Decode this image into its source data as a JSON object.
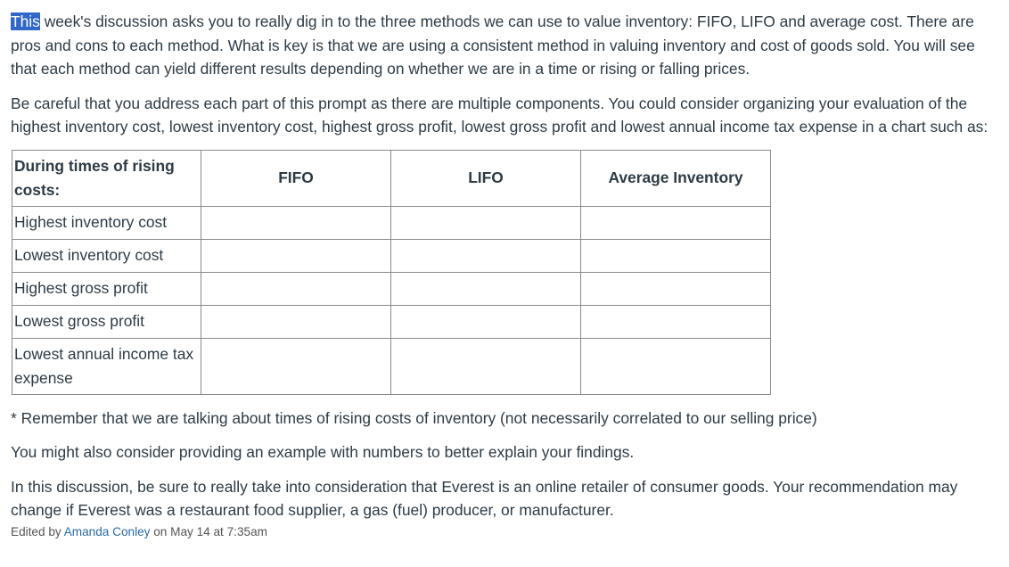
{
  "paragraphs": {
    "p1_highlight": "This",
    "p1_rest": " week's discussion asks you to really dig in to the three methods we can use to value inventory: FIFO, LIFO and average cost. There are pros and cons to each method. What is key is that we are using a consistent method in valuing inventory and cost of goods sold. You will see that each method can yield different results depending on whether we are in a time or rising or falling prices.",
    "p2": "Be careful that you address each part of this prompt as there are multiple components. You could consider organizing your evaluation of the highest inventory cost, lowest inventory cost, highest gross profit, lowest gross profit and lowest annual income tax expense in a chart such as:",
    "p3": "* Remember that we are talking about times of rising costs of inventory (not necessarily correlated to our selling price)",
    "p4": "You might also consider providing an example with numbers to better explain your findings.",
    "p5": "In this discussion, be sure to really take into consideration that Everest is an online retailer of consumer goods. Your recommendation may change if Everest was a restaurant food supplier, a gas (fuel) producer, or manufacturer."
  },
  "table": {
    "headers": [
      "During times of rising costs:",
      "FIFO",
      "LIFO",
      "Average Inventory"
    ],
    "rows": [
      [
        "Highest inventory cost",
        "",
        "",
        ""
      ],
      [
        "Lowest inventory cost",
        "",
        "",
        ""
      ],
      [
        "Highest gross profit",
        "",
        "",
        ""
      ],
      [
        "Lowest gross profit",
        "",
        "",
        ""
      ],
      [
        "Lowest annual income tax expense",
        "",
        "",
        ""
      ]
    ]
  },
  "edited": {
    "prefix": "Edited by ",
    "author": "Amanda Conley",
    "middle": " on ",
    "date": "May 14 at 7:35am"
  }
}
